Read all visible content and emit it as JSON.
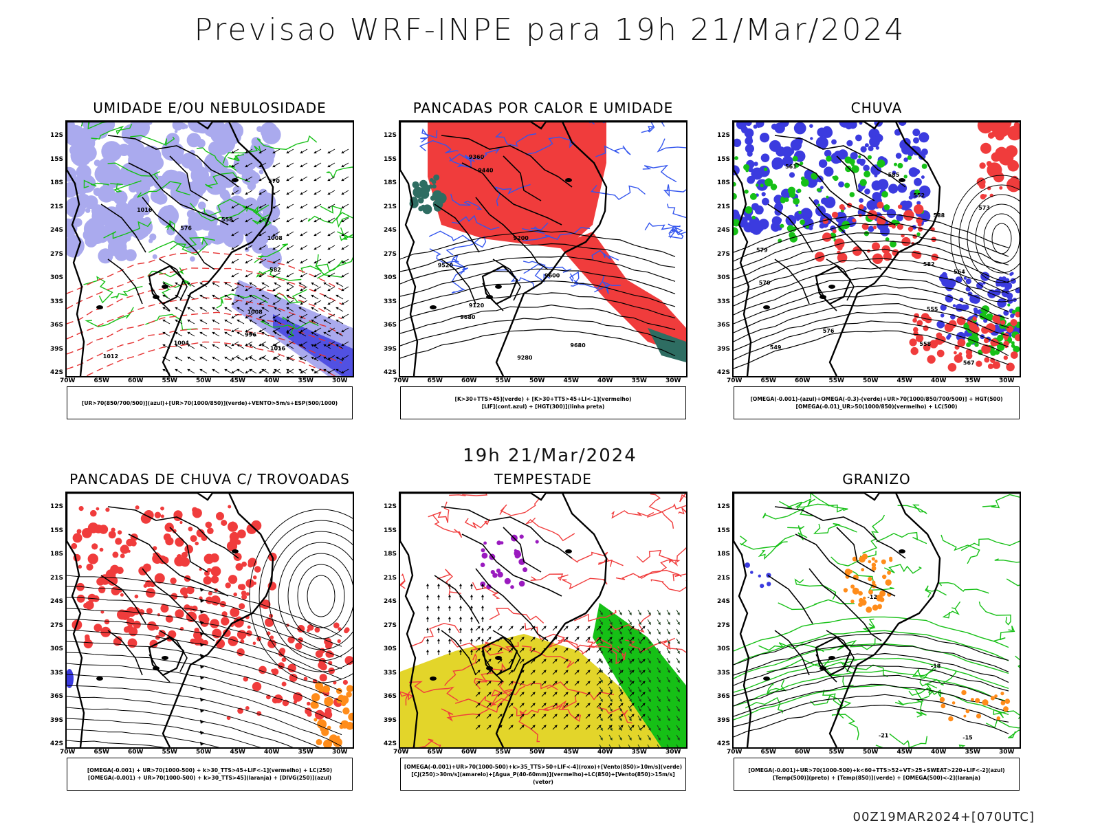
{
  "header": {
    "title": "Previsao WRF-INPE  para 19h 21/Mar/2024"
  },
  "middle": {
    "title": "19h 21/Mar/2024"
  },
  "footer": {
    "run": "00Z19MAR2024+[070UTC]"
  },
  "axes": {
    "lat": [
      "12S",
      "15S",
      "18S",
      "21S",
      "24S",
      "27S",
      "30S",
      "33S",
      "36S",
      "39S",
      "42S"
    ],
    "lon": [
      "70W",
      "65W",
      "60W",
      "55W",
      "50W",
      "45W",
      "40W",
      "35W",
      "30W"
    ]
  },
  "panels": [
    {
      "title": "UMIDADE E/OU NEBULOSIDADE",
      "legend": [
        "[UR>70(850/700/500)](azul)+[UR>70(1000/850)](verde)+VENTO>5m/s+ESP(500/1000)"
      ],
      "labels": [
        "1008",
        "1008",
        "1012",
        "1016",
        "1016",
        "1004",
        "996",
        "576",
        "570",
        "582",
        "558"
      ]
    },
    {
      "title": "PANCADAS POR CALOR E UMIDADE",
      "legend": [
        "[K>30+TTS>45](verde) + [K>30+TTS>45+LI<-1](vermelho)",
        "[LIF](cont.azul) + [HGT(300)](linha preta)"
      ],
      "labels": [
        "9680",
        "9680",
        "9600",
        "9520",
        "9440",
        "9360",
        "9280",
        "9200",
        "9120"
      ]
    },
    {
      "title": "CHUVA",
      "legend": [
        "[OMEGA(-0.001)-(azul)+OMEGA(-0.3)-(verde)+UR>70(1000/850/700/500)] + HGT(500)",
        "[OMEGA(-0.01)_UR>50(1000/850)(vermelho) + LC(500)"
      ],
      "labels": [
        "588",
        "585",
        "582",
        "579",
        "576",
        "573",
        "570",
        "567",
        "564",
        "561",
        "558",
        "555",
        "552",
        "549"
      ]
    },
    {
      "title": "PANCADAS DE CHUVA C/ TROVOADAS",
      "legend": [
        "[OMEGA(-0.001) + UR>70(1000-500) + k>30_TTS>45+LIF<-1](vermelho) + LC(250)",
        "[OMEGA(-0.001) + UR>70(1000-500) + k>30_TTS>45](laranja) + [DIVG(250)](azul)"
      ],
      "labels": []
    },
    {
      "title": "TEMPESTADE",
      "legend": [
        "[OMEGA(-0.001)+UR>70(1000-500)+k>35_TTS>50+LIF<-4](roxo)+[Vento(850)>10m/s](verde)",
        "[CJ(250)>30m/s](amarelo)+[Agua_P(40-60mm)](vermelho)+LC(850)+[Vento(850)>15m/s](vetor)"
      ],
      "labels": []
    },
    {
      "title": "GRANIZO",
      "legend": [
        "[OMEGA(-0.001)+UR>70(1000-500)+k<60+TTS>52+VT>25+SWEAT>220+LIF<-2](azul)",
        "[Temp(500)](preto) + [Temp(850)](verde) + [OMEGA(500)<-2](laranja)"
      ],
      "labels": [
        "-12",
        "-15",
        "-18",
        "-21"
      ]
    }
  ],
  "colors": {
    "blue": "#3b3bdf",
    "lightblue": "#aaaaee",
    "green": "#16c016",
    "red": "#f03c3c",
    "darkteal": "#2e6d62",
    "yellow": "#e3d52a",
    "orange": "#ff8c1a",
    "purple": "#9a1abf"
  }
}
